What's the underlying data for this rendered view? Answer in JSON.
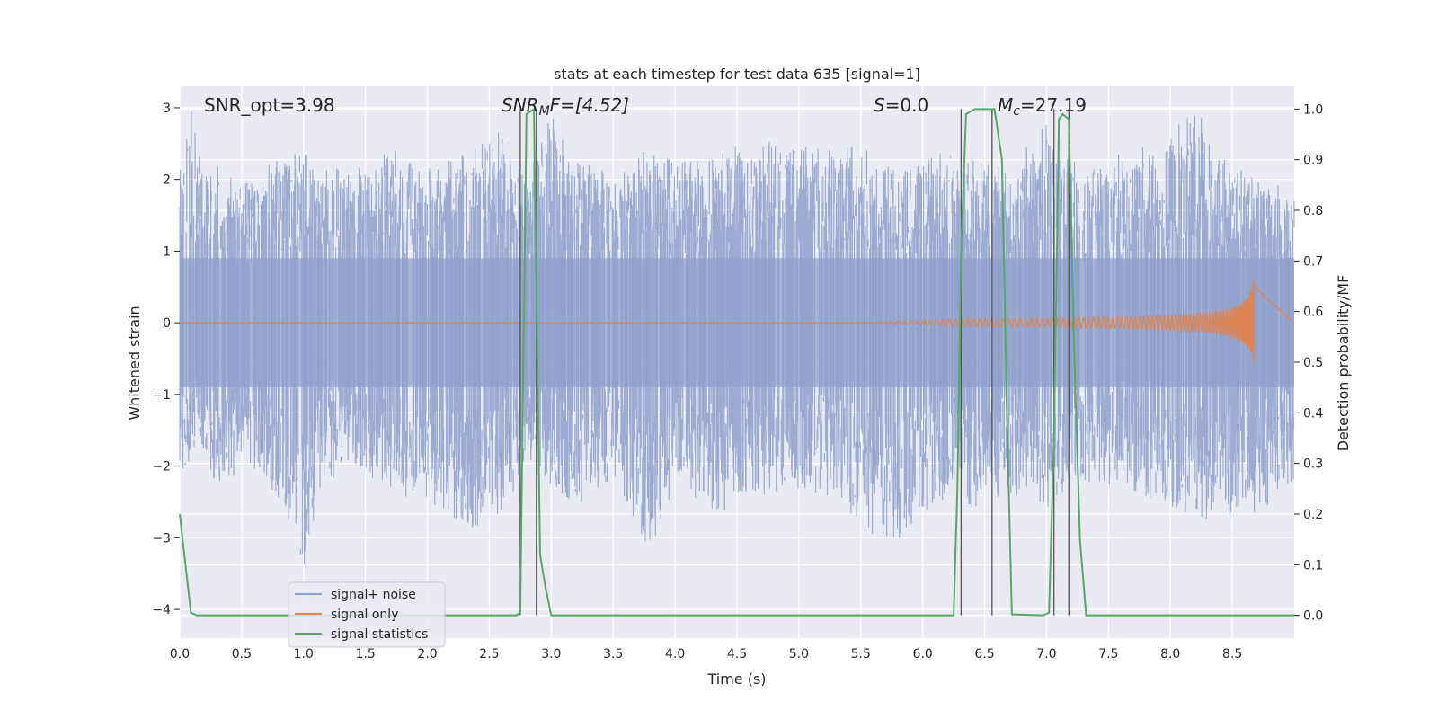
{
  "chart_data": {
    "type": "line",
    "title": "stats at each timestep for test data 635 [signal=1]",
    "xlabel": "Time (s)",
    "ylabel": "Whitened strain",
    "y2label": "Detection probability/MF",
    "xlim": [
      0.0,
      9.0
    ],
    "ylim": [
      -4.4,
      3.3
    ],
    "y2lim": [
      -0.045,
      1.045
    ],
    "x_ticks": [
      "0.0",
      "0.5",
      "1.0",
      "1.5",
      "2.0",
      "2.5",
      "3.0",
      "3.5",
      "4.0",
      "4.5",
      "5.0",
      "5.5",
      "6.0",
      "6.5",
      "7.0",
      "7.5",
      "8.0",
      "8.5"
    ],
    "y_ticks": [
      "3",
      "2",
      "1",
      "0",
      "−1",
      "−2",
      "−3",
      "−4"
    ],
    "y2_ticks": [
      "1.0",
      "0.9",
      "0.8",
      "0.7",
      "0.6",
      "0.5",
      "0.4",
      "0.3",
      "0.2",
      "0.1",
      "0.0"
    ],
    "grid": true,
    "legend_position": "lower-left",
    "colors": {
      "noise": "#8da0cb",
      "signal": "#dd8452",
      "stats": "#55a868",
      "vlines": "#555555",
      "background": "#eaeaf2",
      "grid": "#ffffff"
    },
    "annotations": {
      "snr_opt": "SNR_opt=3.98",
      "snr_mf_sym": "SNR",
      "snr_mf_sub": "M",
      "snr_mf_rest": "F=[4.52]",
      "s_sym": "S",
      "s_rest": "=0.0",
      "mc_sym": "M",
      "mc_sub": "c",
      "mc_rest": "=27.19"
    },
    "series": [
      {
        "name": "signal+ noise",
        "description_envelope": {
          "x": [
            0.0,
            0.1,
            0.2,
            0.3,
            0.5,
            0.7,
            1.0,
            1.2,
            1.4,
            1.7,
            2.0,
            2.3,
            2.6,
            2.8,
            3.0,
            3.2,
            3.5,
            3.8,
            4.0,
            4.3,
            4.6,
            4.9,
            5.2,
            5.5,
            5.8,
            6.1,
            6.4,
            6.7,
            7.0,
            7.3,
            7.6,
            7.9,
            8.2,
            8.5,
            8.8,
            9.0
          ],
          "upper": [
            2.2,
            3.0,
            2.1,
            2.2,
            2.0,
            2.2,
            2.5,
            2.2,
            2.1,
            2.5,
            2.2,
            2.4,
            2.7,
            2.2,
            2.9,
            2.3,
            2.1,
            2.6,
            2.2,
            2.4,
            2.5,
            2.6,
            2.4,
            2.5,
            2.1,
            2.4,
            2.3,
            2.2,
            2.8,
            2.1,
            2.4,
            2.5,
            3.0,
            2.2,
            2.1,
            1.9
          ],
          "lower": [
            -2.1,
            -2.0,
            -1.9,
            -2.4,
            -2.0,
            -2.2,
            -3.5,
            -2.2,
            -2.0,
            -2.4,
            -2.5,
            -2.9,
            -2.7,
            -2.0,
            -2.3,
            -2.6,
            -2.2,
            -3.3,
            -2.2,
            -2.8,
            -2.4,
            -2.5,
            -2.4,
            -2.9,
            -3.1,
            -2.5,
            -2.7,
            -2.4,
            -2.6,
            -2.2,
            -2.3,
            -2.5,
            -2.8,
            -2.7,
            -2.6,
            -2.2
          ]
        }
      },
      {
        "name": "signal only",
        "chirp": {
          "start": 5.5,
          "end": 8.68,
          "amp_end": 0.75
        }
      },
      {
        "name": "signal statistics",
        "x": [
          0.0,
          0.09,
          0.14,
          2.72,
          2.75,
          2.8,
          2.86,
          2.91,
          2.95,
          3.0,
          6.25,
          6.28,
          6.31,
          6.35,
          6.42,
          6.5,
          6.58,
          6.64,
          6.68,
          6.72,
          6.97,
          7.02,
          7.06,
          7.1,
          7.13,
          7.18,
          7.22,
          7.27,
          7.32,
          9.0
        ],
        "y": [
          0.2,
          0.005,
          0.0,
          0.0,
          0.005,
          0.99,
          1.0,
          0.12,
          0.06,
          0.0,
          0.0,
          0.25,
          0.72,
          0.99,
          1.0,
          1.0,
          1.0,
          0.9,
          0.4,
          0.002,
          0.0,
          0.005,
          0.35,
          0.98,
          0.99,
          0.98,
          0.55,
          0.15,
          0.0,
          0.0
        ]
      }
    ],
    "vlines": [
      2.75,
      2.88,
      6.31,
      6.56,
      7.06,
      7.18
    ]
  }
}
